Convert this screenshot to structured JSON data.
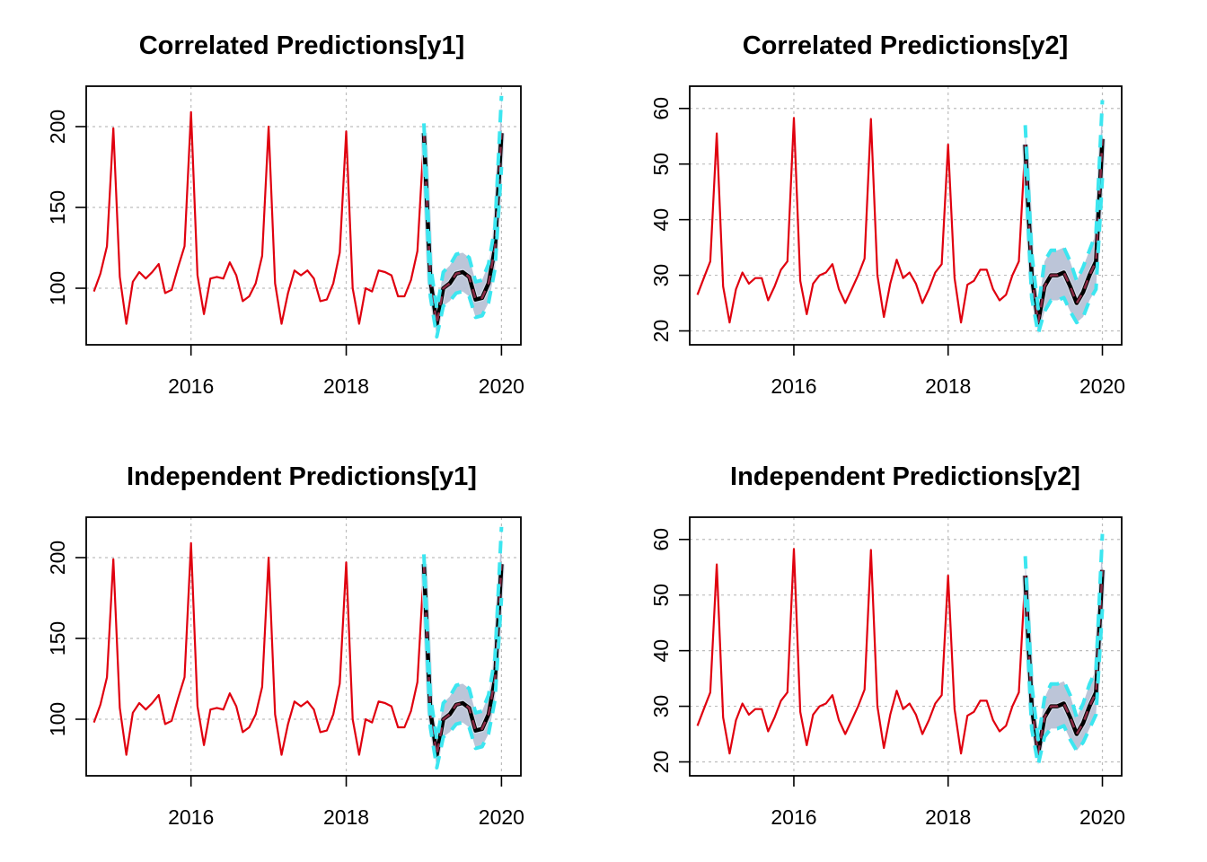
{
  "colors": {
    "history": "#e0000f",
    "mean": "#000000",
    "ci_band": "#b8c2d6",
    "ci_line": "#3ce6f0",
    "mean_dash": "#8a2b45",
    "grid": "#bdbdbd"
  },
  "chart_data": [
    {
      "type": "line",
      "title": "Correlated Predictions[y1]",
      "xlabel": "",
      "ylabel": "",
      "xlim": [
        2014.65,
        2020.25
      ],
      "ylim": [
        65,
        225
      ],
      "xticks": [
        2016,
        2018,
        2020
      ],
      "yticks": [
        100,
        150,
        200
      ],
      "xtick_labels": [
        "2016",
        "2018",
        "2020"
      ],
      "ytick_labels": [
        "100",
        "150",
        "200"
      ],
      "grid": true,
      "history": {
        "x": [
          2014.75,
          2014.8333,
          2014.9167,
          2015.0,
          2015.0833,
          2015.1667,
          2015.25,
          2015.3333,
          2015.4167,
          2015.5,
          2015.5833,
          2015.6667,
          2015.75,
          2015.8333,
          2015.9167,
          2016.0,
          2016.0833,
          2016.1667,
          2016.25,
          2016.3333,
          2016.4167,
          2016.5,
          2016.5833,
          2016.6667,
          2016.75,
          2016.8333,
          2016.9167,
          2017.0,
          2017.0833,
          2017.1667,
          2017.25,
          2017.3333,
          2017.4167,
          2017.5,
          2017.5833,
          2017.6667,
          2017.75,
          2017.8333,
          2017.9167,
          2018.0,
          2018.0833,
          2018.1667,
          2018.25,
          2018.3333,
          2018.4167,
          2018.5,
          2018.5833,
          2018.6667,
          2018.75,
          2018.8333,
          2018.9167,
          2019.0
        ],
        "y": [
          98,
          109,
          126,
          199,
          107,
          78,
          104,
          110,
          106,
          110,
          115,
          97,
          99,
          113,
          126,
          209,
          108,
          84,
          106,
          107,
          106,
          116,
          108,
          92,
          95,
          103,
          120,
          200,
          103,
          78,
          97,
          111,
          108,
          111,
          106,
          92,
          93,
          103,
          122,
          197,
          100,
          78,
          100,
          98,
          111,
          110,
          108,
          95,
          95,
          105,
          123,
          194
        ]
      },
      "forecast": {
        "x": [
          2019.0,
          2019.0833,
          2019.1667,
          2019.25,
          2019.3333,
          2019.4167,
          2019.5,
          2019.5833,
          2019.6667,
          2019.75,
          2019.8333,
          2019.9167,
          2020.0
        ],
        "mean": [
          196,
          105,
          78,
          100,
          103,
          109,
          110,
          107,
          93,
          94,
          103,
          125,
          196
        ],
        "lower": [
          190,
          95,
          70,
          89,
          92,
          97,
          98,
          95,
          82,
          83,
          91,
          112,
          175
        ],
        "upper": [
          202,
          115,
          87,
          110,
          114,
          121,
          122,
          119,
          104,
          105,
          115,
          138,
          219
        ]
      }
    },
    {
      "type": "line",
      "title": "Correlated Predictions[y2]",
      "xlabel": "",
      "ylabel": "",
      "xlim": [
        2014.65,
        2020.25
      ],
      "ylim": [
        17.5,
        64
      ],
      "xticks": [
        2016,
        2018,
        2020
      ],
      "yticks": [
        20,
        30,
        40,
        50,
        60
      ],
      "xtick_labels": [
        "2016",
        "2018",
        "2020"
      ],
      "ytick_labels": [
        "20",
        "30",
        "40",
        "50",
        "60"
      ],
      "grid": true,
      "history": {
        "x": [
          2014.75,
          2014.8333,
          2014.9167,
          2015.0,
          2015.0833,
          2015.1667,
          2015.25,
          2015.3333,
          2015.4167,
          2015.5,
          2015.5833,
          2015.6667,
          2015.75,
          2015.8333,
          2015.9167,
          2016.0,
          2016.0833,
          2016.1667,
          2016.25,
          2016.3333,
          2016.4167,
          2016.5,
          2016.5833,
          2016.6667,
          2016.75,
          2016.8333,
          2016.9167,
          2017.0,
          2017.0833,
          2017.1667,
          2017.25,
          2017.3333,
          2017.4167,
          2017.5,
          2017.5833,
          2017.6667,
          2017.75,
          2017.8333,
          2017.9167,
          2018.0,
          2018.0833,
          2018.1667,
          2018.25,
          2018.3333,
          2018.4167,
          2018.5,
          2018.5833,
          2018.6667,
          2018.75,
          2018.8333,
          2018.9167,
          2019.0
        ],
        "y": [
          26.5,
          29.5,
          32.5,
          55.5,
          28,
          21.5,
          27.5,
          30.5,
          28.5,
          29.5,
          29.5,
          25.5,
          28,
          31,
          32.5,
          58.3,
          29,
          23,
          28.5,
          30,
          30.5,
          32,
          27.5,
          25,
          27.5,
          30,
          33,
          58.1,
          30,
          22.5,
          28.5,
          32.8,
          29.5,
          30.5,
          28.5,
          25,
          27.5,
          30.5,
          32,
          53.5,
          29.5,
          21.5,
          28.3,
          29,
          31,
          31,
          27.5,
          25.5,
          26.5,
          30,
          32.5,
          53.5
        ]
      },
      "forecast": {
        "x": [
          2019.0,
          2019.0833,
          2019.1667,
          2019.25,
          2019.3333,
          2019.4167,
          2019.5,
          2019.5833,
          2019.6667,
          2019.75,
          2019.8333,
          2019.9167,
          2020.0
        ],
        "mean": [
          53.5,
          30,
          21.5,
          28,
          30,
          30,
          30.5,
          28,
          25,
          27,
          30,
          32.5,
          54.5
        ],
        "lower": [
          50,
          26,
          19.5,
          23.5,
          25.5,
          25.5,
          26,
          23.5,
          21.5,
          22.5,
          25.5,
          27.5,
          47.5
        ],
        "upper": [
          57,
          34,
          24,
          32.5,
          34.5,
          34.5,
          35,
          32.5,
          29,
          31.5,
          34.5,
          37.5,
          61.5
        ]
      }
    },
    {
      "type": "line",
      "title": "Independent Predictions[y1]",
      "xlabel": "",
      "ylabel": "",
      "xlim": [
        2014.65,
        2020.25
      ],
      "ylim": [
        65,
        225
      ],
      "xticks": [
        2016,
        2018,
        2020
      ],
      "yticks": [
        100,
        150,
        200
      ],
      "xtick_labels": [
        "2016",
        "2018",
        "2020"
      ],
      "ytick_labels": [
        "100",
        "150",
        "200"
      ],
      "grid": true,
      "history": {
        "x": [
          2014.75,
          2014.8333,
          2014.9167,
          2015.0,
          2015.0833,
          2015.1667,
          2015.25,
          2015.3333,
          2015.4167,
          2015.5,
          2015.5833,
          2015.6667,
          2015.75,
          2015.8333,
          2015.9167,
          2016.0,
          2016.0833,
          2016.1667,
          2016.25,
          2016.3333,
          2016.4167,
          2016.5,
          2016.5833,
          2016.6667,
          2016.75,
          2016.8333,
          2016.9167,
          2017.0,
          2017.0833,
          2017.1667,
          2017.25,
          2017.3333,
          2017.4167,
          2017.5,
          2017.5833,
          2017.6667,
          2017.75,
          2017.8333,
          2017.9167,
          2018.0,
          2018.0833,
          2018.1667,
          2018.25,
          2018.3333,
          2018.4167,
          2018.5,
          2018.5833,
          2018.6667,
          2018.75,
          2018.8333,
          2018.9167,
          2019.0
        ],
        "y": [
          98,
          109,
          126,
          199,
          107,
          78,
          104,
          110,
          106,
          110,
          115,
          97,
          99,
          113,
          126,
          209,
          108,
          84,
          106,
          107,
          106,
          116,
          108,
          92,
          95,
          103,
          120,
          200,
          103,
          78,
          97,
          111,
          108,
          111,
          106,
          92,
          93,
          103,
          122,
          197,
          100,
          78,
          100,
          98,
          111,
          110,
          108,
          95,
          95,
          105,
          123,
          194
        ]
      },
      "forecast": {
        "x": [
          2019.0,
          2019.0833,
          2019.1667,
          2019.25,
          2019.3333,
          2019.4167,
          2019.5,
          2019.5833,
          2019.6667,
          2019.75,
          2019.8333,
          2019.9167,
          2020.0
        ],
        "mean": [
          196,
          105,
          78,
          100,
          103,
          109,
          110,
          107,
          93,
          94,
          103,
          125,
          196
        ],
        "lower": [
          190,
          95,
          70,
          89,
          92,
          97,
          98,
          95,
          82,
          83,
          91,
          112,
          175
        ],
        "upper": [
          202,
          115,
          87,
          110,
          114,
          121,
          122,
          119,
          104,
          105,
          115,
          138,
          219
        ]
      }
    },
    {
      "type": "line",
      "title": "Independent Predictions[y2]",
      "xlabel": "",
      "ylabel": "",
      "xlim": [
        2014.65,
        2020.25
      ],
      "ylim": [
        17.5,
        64
      ],
      "xticks": [
        2016,
        2018,
        2020
      ],
      "yticks": [
        20,
        30,
        40,
        50,
        60
      ],
      "xtick_labels": [
        "2016",
        "2018",
        "2020"
      ],
      "ytick_labels": [
        "20",
        "30",
        "40",
        "50",
        "60"
      ],
      "grid": true,
      "history": {
        "x": [
          2014.75,
          2014.8333,
          2014.9167,
          2015.0,
          2015.0833,
          2015.1667,
          2015.25,
          2015.3333,
          2015.4167,
          2015.5,
          2015.5833,
          2015.6667,
          2015.75,
          2015.8333,
          2015.9167,
          2016.0,
          2016.0833,
          2016.1667,
          2016.25,
          2016.3333,
          2016.4167,
          2016.5,
          2016.5833,
          2016.6667,
          2016.75,
          2016.8333,
          2016.9167,
          2017.0,
          2017.0833,
          2017.1667,
          2017.25,
          2017.3333,
          2017.4167,
          2017.5,
          2017.5833,
          2017.6667,
          2017.75,
          2017.8333,
          2017.9167,
          2018.0,
          2018.0833,
          2018.1667,
          2018.25,
          2018.3333,
          2018.4167,
          2018.5,
          2018.5833,
          2018.6667,
          2018.75,
          2018.8333,
          2018.9167,
          2019.0
        ],
        "y": [
          26.5,
          29.5,
          32.5,
          55.5,
          28,
          21.5,
          27.5,
          30.5,
          28.5,
          29.5,
          29.5,
          25.5,
          28,
          31,
          32.5,
          58.3,
          29,
          23,
          28.5,
          30,
          30.5,
          32,
          27.5,
          25,
          27.5,
          30,
          33,
          58.1,
          30,
          22.5,
          28.5,
          32.8,
          29.5,
          30.5,
          28.5,
          25,
          27.5,
          30.5,
          32,
          53.5,
          29.5,
          21.5,
          28.3,
          29,
          31,
          31,
          27.5,
          25.5,
          26.5,
          30,
          32.5,
          53.5
        ]
      },
      "forecast": {
        "x": [
          2019.0,
          2019.0833,
          2019.1667,
          2019.25,
          2019.3333,
          2019.4167,
          2019.5,
          2019.5833,
          2019.6667,
          2019.75,
          2019.8333,
          2019.9167,
          2020.0
        ],
        "mean": [
          53.5,
          30,
          21.5,
          28,
          30,
          30,
          30.5,
          28,
          25,
          27,
          30,
          32.5,
          54.5
        ],
        "lower": [
          50,
          26,
          19.5,
          24.5,
          26,
          26,
          26.5,
          24,
          22,
          23.5,
          26,
          28.5,
          47.5
        ],
        "upper": [
          57,
          34,
          24,
          31.5,
          34,
          34,
          34.5,
          32,
          28,
          30.5,
          34,
          36.5,
          61
        ]
      }
    }
  ]
}
